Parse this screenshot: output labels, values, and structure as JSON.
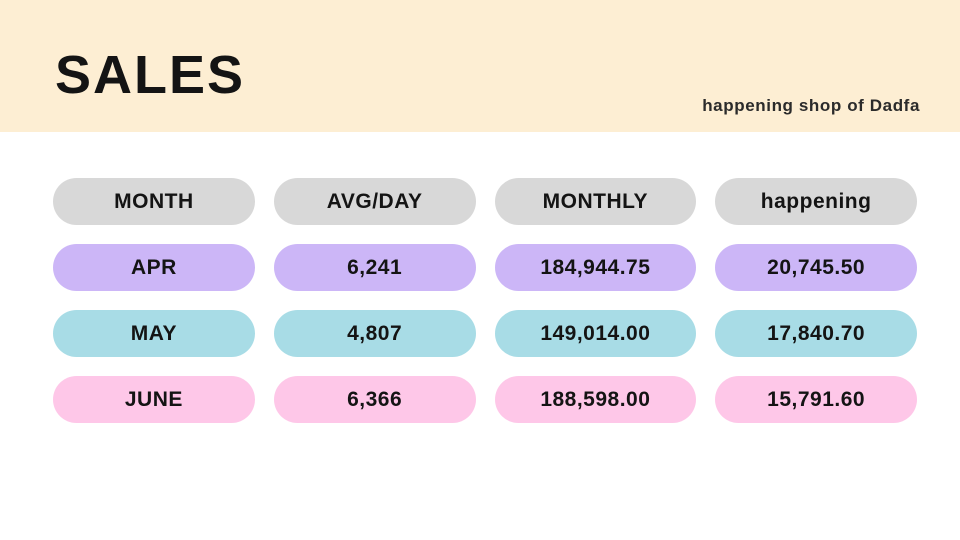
{
  "banner": {
    "title": "SALES",
    "subtitle": "happening shop of Dadfa"
  },
  "colors": {
    "page_bg": "#ffffff",
    "banner_bg": "#fdeed3",
    "header_pill": "#d8d8d8",
    "row_apr_pill": "#ccb6f7",
    "row_may_pill": "#a8dce6",
    "row_june_pill": "#fec7e8",
    "text": "#141414"
  },
  "table": {
    "headers": [
      "MONTH",
      "AVG/DAY",
      "MONTHLY",
      "happening"
    ],
    "rows": [
      {
        "month": "APR",
        "avg_day": "6,241",
        "monthly": "184,944.75",
        "happening": "20,745.50"
      },
      {
        "month": "MAY",
        "avg_day": "4,807",
        "monthly": "149,014.00",
        "happening": "17,840.70"
      },
      {
        "month": "JUNE",
        "avg_day": "6,366",
        "monthly": "188,598.00",
        "happening": "15,791.60"
      }
    ]
  },
  "chart_data": {
    "type": "table",
    "title": "SALES",
    "columns": [
      "MONTH",
      "AVG/DAY",
      "MONTHLY",
      "happening"
    ],
    "rows": [
      [
        "APR",
        6241,
        184944.75,
        20745.5
      ],
      [
        "MAY",
        4807,
        149014.0,
        17840.7
      ],
      [
        "JUNE",
        6366,
        188598.0,
        15791.6
      ]
    ]
  }
}
